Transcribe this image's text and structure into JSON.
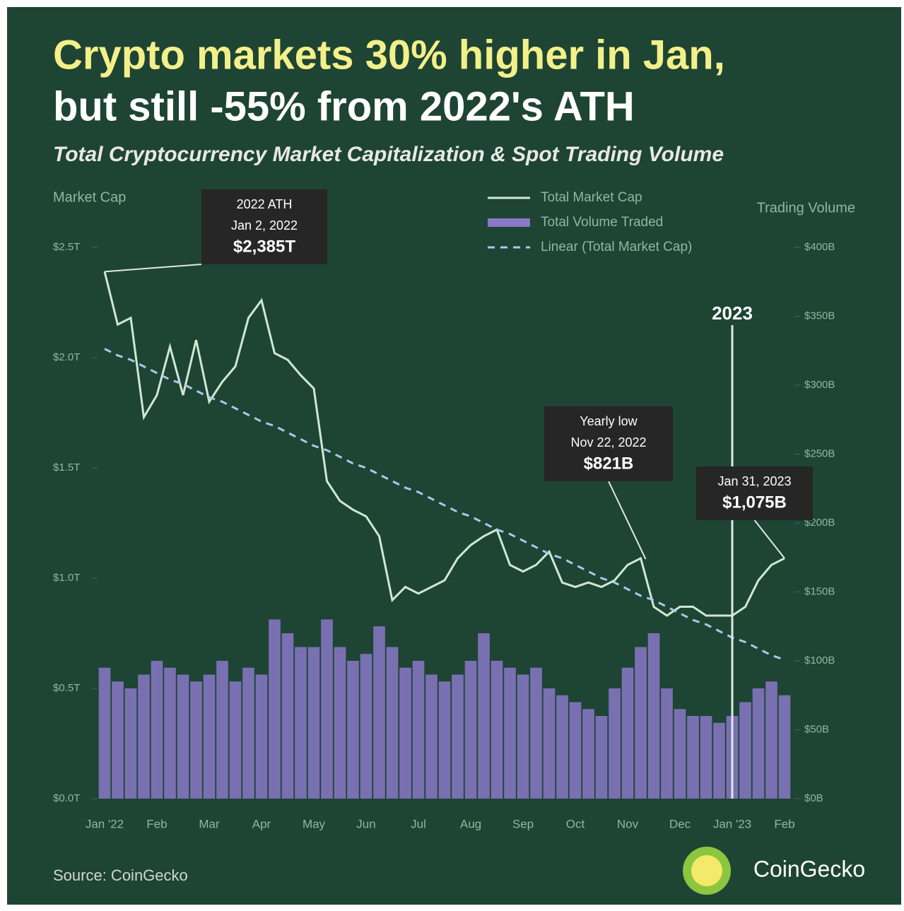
{
  "chart_data": {
    "type": "combo",
    "title": [
      "Crypto markets 30% higher in Jan,",
      "but still -55% from 2022's ATH"
    ],
    "subtitle": "Total Cryptocurrency Market Capitalization & Spot Trading Volume",
    "y_label": "Market Cap",
    "y2_label": "Trading Volume",
    "categories": [
      "Jan '22",
      null,
      null,
      null,
      "Feb",
      null,
      null,
      null,
      "Mar",
      null,
      null,
      null,
      "Apr",
      null,
      null,
      null,
      "May",
      null,
      null,
      null,
      "Jun",
      null,
      null,
      null,
      "Jul",
      null,
      null,
      null,
      "Aug",
      null,
      null,
      null,
      "Sep",
      null,
      null,
      null,
      "Oct",
      null,
      null,
      null,
      "Nov",
      null,
      null,
      null,
      "Dec",
      null,
      null,
      null,
      "Jan '23",
      null,
      null,
      null,
      "Feb"
    ],
    "series": [
      {
        "name": "Total Market Cap",
        "kind": "line",
        "axis": "y",
        "color": "#cfe8d2",
        "values": [
          2.39,
          2.15,
          2.18,
          1.73,
          1.83,
          2.05,
          1.83,
          2.08,
          1.8,
          1.89,
          1.96,
          2.18,
          2.26,
          2.02,
          1.99,
          1.92,
          1.86,
          1.44,
          1.35,
          1.31,
          1.28,
          1.19,
          0.9,
          0.96,
          0.93,
          0.96,
          0.99,
          1.09,
          1.15,
          1.19,
          1.22,
          1.06,
          1.03,
          1.06,
          1.12,
          0.98,
          0.96,
          0.98,
          0.96,
          0.99,
          1.06,
          1.09,
          0.87,
          0.83,
          0.87,
          0.87,
          0.83,
          0.83,
          0.83,
          0.87,
          0.99,
          1.06,
          1.09
        ]
      },
      {
        "name": "Total Volume Traded",
        "kind": "bar",
        "axis": "y2",
        "color": "#8a78c8",
        "values": [
          95,
          85,
          80,
          90,
          100,
          95,
          90,
          85,
          90,
          100,
          85,
          95,
          90,
          130,
          120,
          110,
          110,
          130,
          110,
          100,
          105,
          125,
          110,
          95,
          100,
          90,
          85,
          90,
          100,
          120,
          100,
          95,
          90,
          95,
          80,
          75,
          70,
          65,
          60,
          80,
          95,
          110,
          120,
          80,
          65,
          60,
          60,
          55,
          60,
          70,
          80,
          85,
          75
        ]
      },
      {
        "name": "Linear (Total Market Cap)",
        "kind": "dashed",
        "axis": "y",
        "color": "#a9c9e6",
        "values": [
          2.04,
          2.01,
          1.99,
          1.96,
          1.93,
          1.9,
          1.88,
          1.85,
          1.82,
          1.8,
          1.77,
          1.74,
          1.71,
          1.69,
          1.66,
          1.63,
          1.6,
          1.58,
          1.55,
          1.52,
          1.5,
          1.47,
          1.44,
          1.41,
          1.39,
          1.36,
          1.33,
          1.3,
          1.28,
          1.25,
          1.22,
          1.2,
          1.17,
          1.14,
          1.11,
          1.09,
          1.06,
          1.03,
          1.0,
          0.98,
          0.95,
          0.92,
          0.9,
          0.87,
          0.84,
          0.81,
          0.79,
          0.76,
          0.73,
          0.71,
          0.68,
          0.65,
          0.63
        ]
      }
    ],
    "ylim": [
      0,
      2.5
    ],
    "yticks": [
      {
        "value": 0,
        "label": "$0.0T"
      },
      {
        "value": 0.5,
        "label": "$0.5T"
      },
      {
        "value": 1,
        "label": "$1.0T"
      },
      {
        "value": 1.5,
        "label": "$1.5T"
      },
      {
        "value": 2,
        "label": "$2.0T"
      },
      {
        "value": 2.5,
        "label": "$2.5T"
      }
    ],
    "y2lim": [
      0,
      400
    ],
    "y2ticks": [
      {
        "value": 0,
        "label": "$0B"
      },
      {
        "value": 50,
        "label": "$50B"
      },
      {
        "value": 100,
        "label": "$100B"
      },
      {
        "value": 150,
        "label": "$150B"
      },
      {
        "value": 200,
        "label": "$200B"
      },
      {
        "value": 250,
        "label": "$250B"
      },
      {
        "value": 300,
        "label": "$300B"
      },
      {
        "value": 350,
        "label": "$350B"
      },
      {
        "value": 400,
        "label": "$400B"
      }
    ],
    "annotations": [
      {
        "lines": [
          "2022 ATH",
          "Jan 2, 2022",
          "$2,385T"
        ]
      },
      {
        "lines": [
          "Yearly low",
          "Nov 22, 2022",
          "$821B"
        ]
      },
      {
        "lines": [
          "Jan 31, 2023",
          "$1,075B"
        ]
      },
      {
        "lines": [
          "2023"
        ]
      }
    ],
    "source": "Source: CoinGecko",
    "brand": "CoinGecko",
    "legend": "top"
  }
}
